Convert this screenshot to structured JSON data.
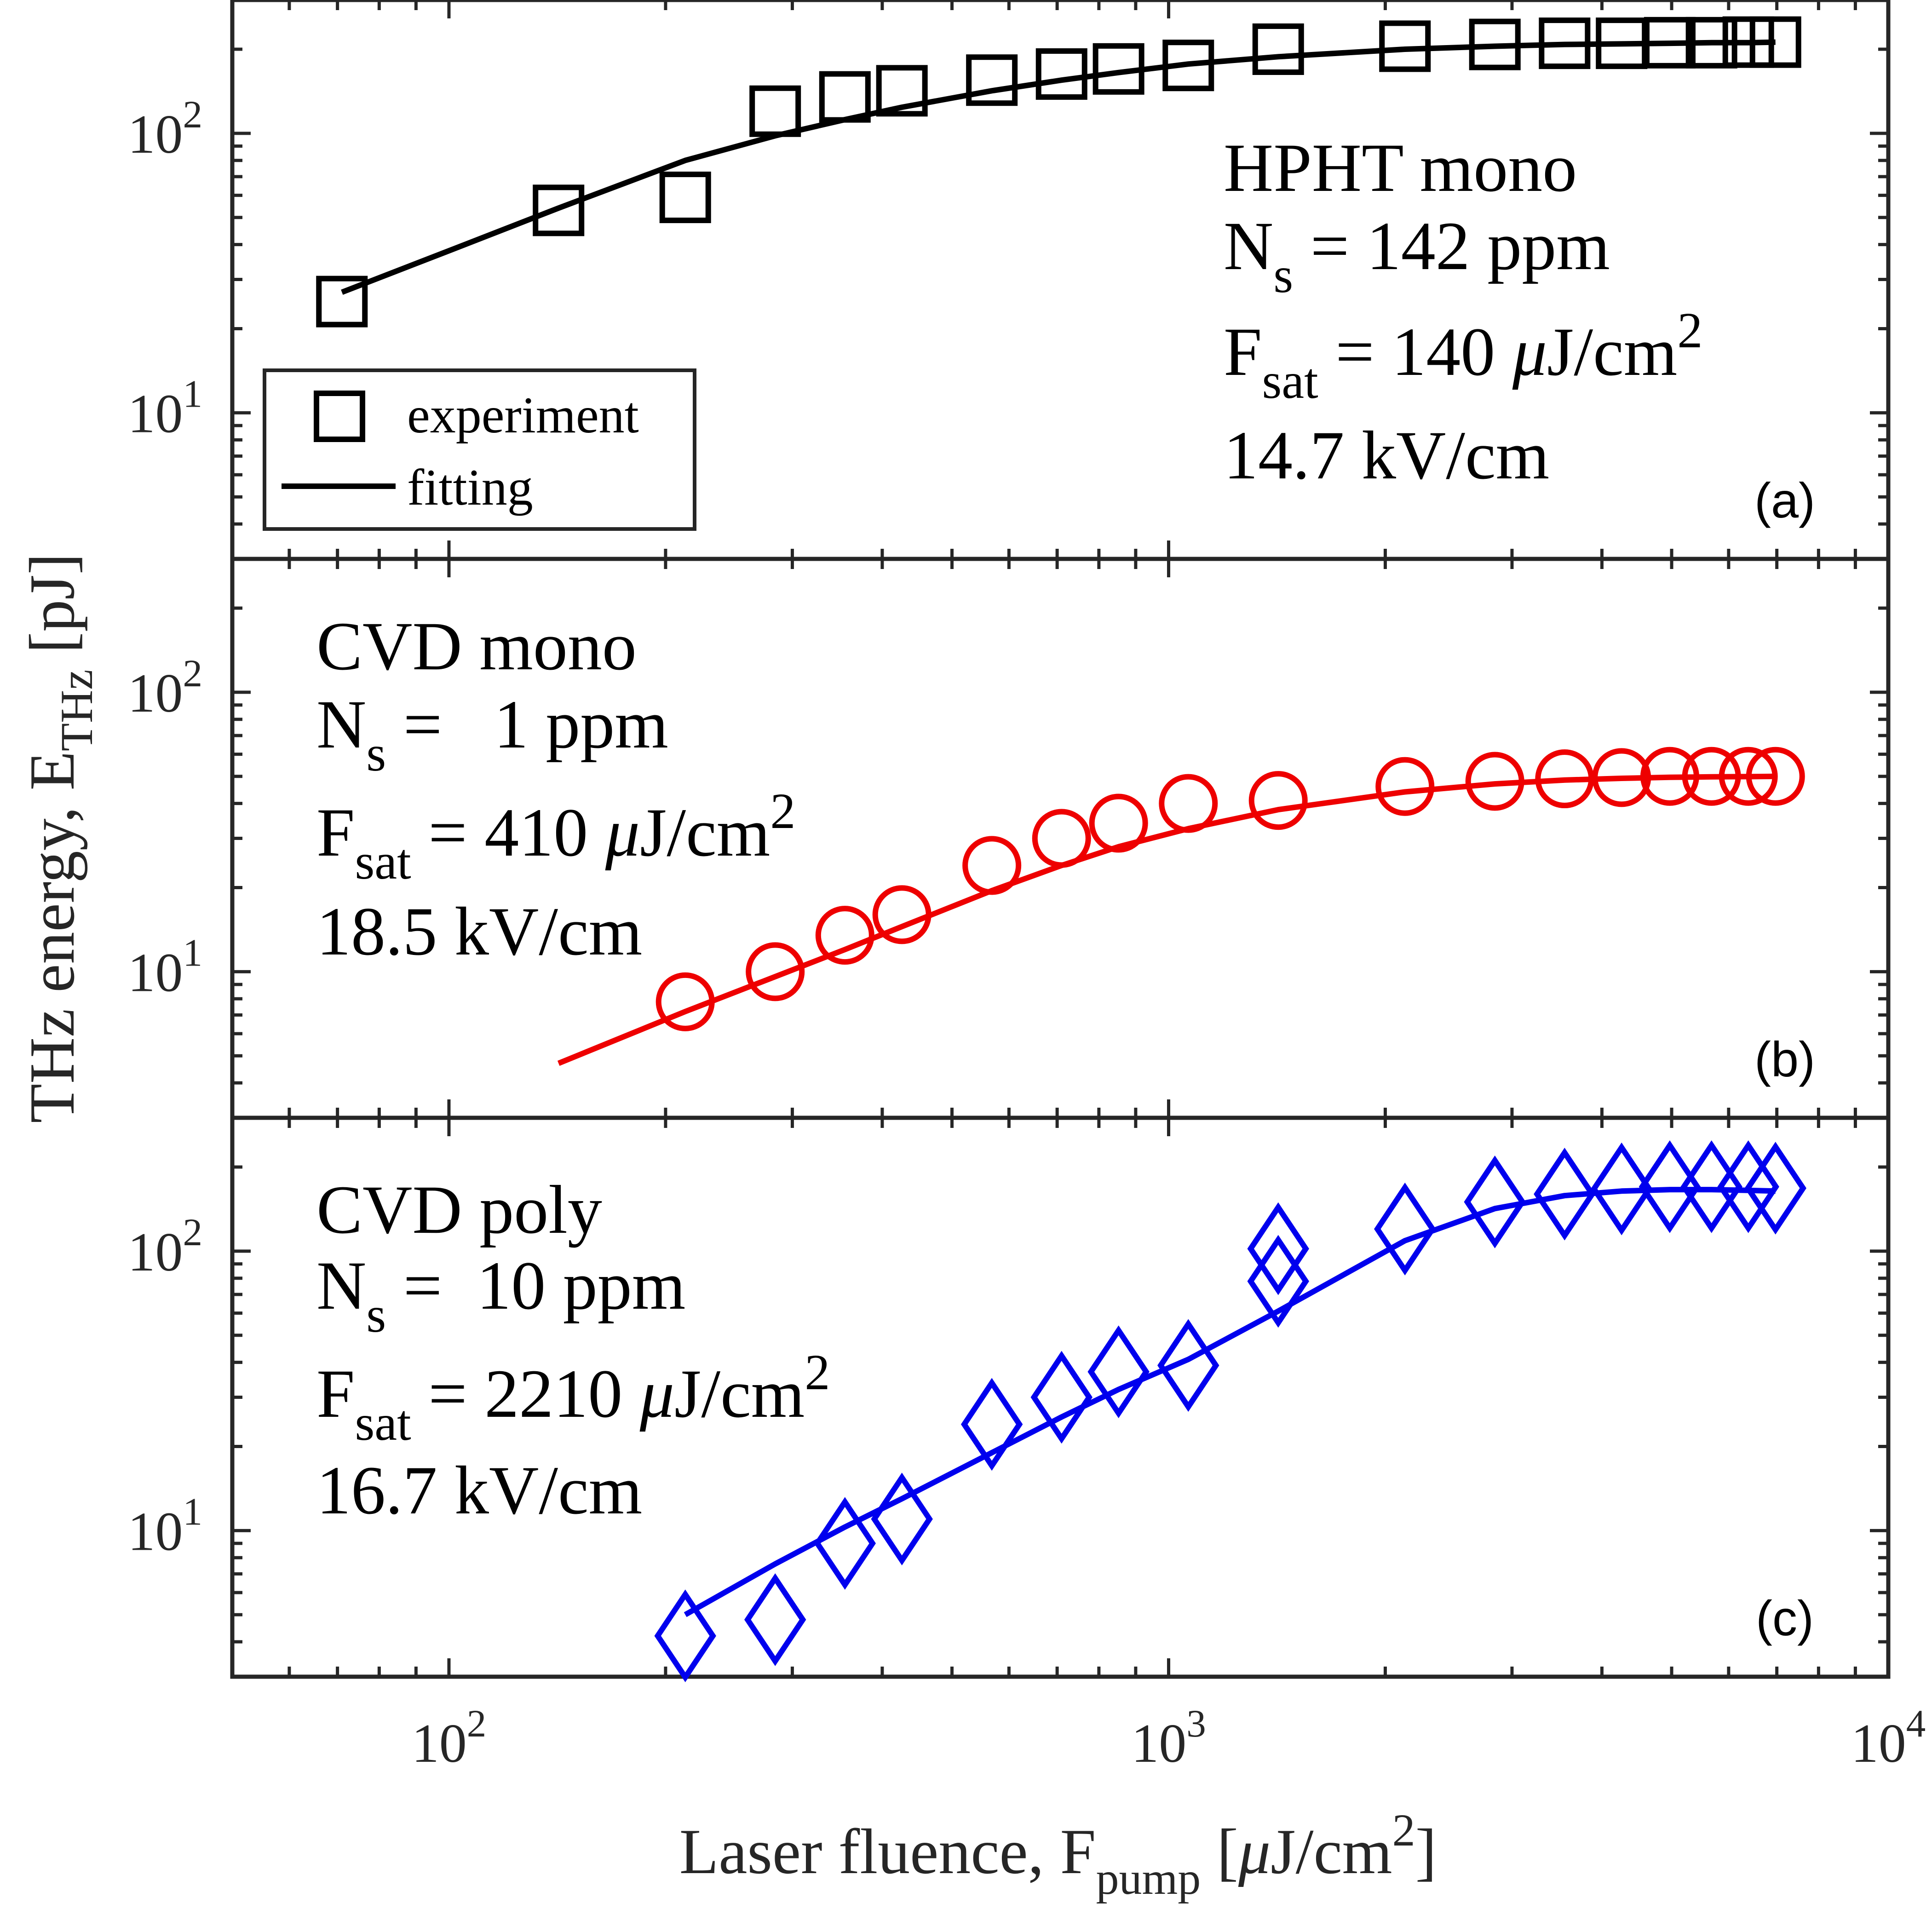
{
  "figure": {
    "ylabel": {
      "main": "THz energy, E",
      "sub": "THz",
      "unit": " [pJ]"
    },
    "xlabel": {
      "main": "Laser fluence, F",
      "sub": "pump",
      "unit_pre": " [",
      "mu": "μ",
      "unit_mid": "J/cm",
      "sup": "2",
      "unit_post": "]"
    }
  },
  "chart_data": [
    {
      "type": "scatter",
      "panel": "(a)",
      "color": "#000000",
      "marker": "square",
      "xscale": "log",
      "yscale": "log",
      "xlim": [
        50,
        10000
      ],
      "ylim": [
        3,
        300
      ],
      "xticks": [
        100,
        1000,
        10000
      ],
      "xtick_labels": [
        {
          "base": "10",
          "exp": "2"
        },
        {
          "base": "10",
          "exp": "3"
        },
        {
          "base": "10",
          "exp": "4"
        }
      ],
      "yticks": [
        10,
        100
      ],
      "ytick_labels": [
        {
          "base": "10",
          "exp": "1"
        },
        {
          "base": "10",
          "exp": "2"
        }
      ],
      "annotation": {
        "title": "HPHT mono",
        "ns_main": "N",
        "ns_sub": "s",
        "ns_value": " = 142 ppm",
        "fsat_main": "F",
        "fsat_sub": "sat",
        "fsat_value": " = 140 ",
        "fsat_mu": "μ",
        "fsat_unit": "J/cm",
        "fsat_sup": "2",
        "field": "14.7 kV/cm"
      },
      "legend": {
        "experiment": "experiment",
        "fitting": "fitting",
        "placement": "bottom-left"
      },
      "series": [
        {
          "name": "experiment",
          "x": [
            71,
            142,
            213,
            284,
            355,
            426,
            568,
            710,
            852,
            1065,
            1420,
            2130,
            2840,
            3550,
            4260,
            4970,
            5680,
            6390,
            6970
          ],
          "y": [
            25,
            53,
            59,
            120,
            135,
            142,
            155,
            163,
            170,
            175,
            200,
            205,
            208,
            210,
            210,
            211,
            211,
            212,
            212
          ]
        },
        {
          "name": "fitting",
          "x": [
            71,
            100,
            142,
            213,
            284,
            355,
            426,
            568,
            710,
            852,
            1065,
            1420,
            2130,
            2840,
            3550,
            4260,
            4970,
            5680,
            6390,
            6970
          ],
          "y": [
            27,
            38,
            54,
            80,
            98,
            112,
            124,
            142,
            155,
            165,
            177,
            188,
            200,
            205,
            208,
            209,
            210,
            211,
            211,
            212
          ]
        }
      ]
    },
    {
      "type": "scatter",
      "panel": "(b)",
      "color": "#ee0000",
      "marker": "circle",
      "xscale": "log",
      "yscale": "log",
      "xlim": [
        50,
        10000
      ],
      "ylim": [
        3,
        300
      ],
      "xticks": [
        100,
        1000,
        10000
      ],
      "yticks": [
        10,
        100
      ],
      "ytick_labels": [
        {
          "base": "10",
          "exp": "1"
        },
        {
          "base": "10",
          "exp": "2"
        }
      ],
      "annotation": {
        "title": "CVD mono",
        "ns_main": "N",
        "ns_sub": "s",
        "ns_value": " =   1 ppm",
        "fsat_main": "F",
        "fsat_sub": "sat",
        "fsat_value": " = 410 ",
        "fsat_mu": "μ",
        "fsat_unit": "J/cm",
        "fsat_sup": "2",
        "field": "18.5 kV/cm"
      },
      "series": [
        {
          "name": "experiment",
          "x": [
            213,
            284,
            355,
            426,
            568,
            710,
            852,
            1065,
            1420,
            2130,
            2840,
            3550,
            4260,
            4970,
            5680,
            6390,
            6970
          ],
          "y": [
            7.8,
            10,
            13.5,
            16,
            24,
            30,
            34,
            40,
            41,
            46,
            48,
            49,
            49.5,
            50,
            50,
            50,
            50
          ]
        },
        {
          "name": "fitting",
          "x": [
            142,
            213,
            284,
            355,
            426,
            568,
            710,
            852,
            1065,
            1420,
            2130,
            2840,
            3550,
            4260,
            4970,
            5680,
            6390,
            6970
          ],
          "y": [
            4.7,
            7.2,
            9.6,
            12,
            14.5,
            19.5,
            24,
            28,
            32.5,
            38,
            44,
            47,
            48.5,
            49.2,
            49.6,
            49.8,
            49.9,
            50
          ]
        }
      ]
    },
    {
      "type": "scatter",
      "panel": "(c)",
      "color": "#0000ee",
      "marker": "diamond",
      "xscale": "log",
      "yscale": "log",
      "xlim": [
        50,
        10000
      ],
      "ylim": [
        3,
        300
      ],
      "xticks": [
        100,
        1000,
        10000
      ],
      "yticks": [
        10,
        100
      ],
      "ytick_labels": [
        {
          "base": "10",
          "exp": "1"
        },
        {
          "base": "10",
          "exp": "2"
        }
      ],
      "annotation": {
        "title": "CVD poly",
        "ns_main": "N",
        "ns_sub": "s",
        "ns_value": " =  10 ppm",
        "fsat_main": "F",
        "fsat_sub": "sat",
        "fsat_value": " = 2210 ",
        "fsat_mu": "μ",
        "fsat_unit": "J/cm",
        "fsat_sup": "2",
        "field": "16.7 kV/cm"
      },
      "series": [
        {
          "name": "experiment",
          "x": [
            213,
            284,
            355,
            426,
            568,
            710,
            852,
            1065,
            1420,
            1420,
            2130,
            2840,
            3550,
            4260,
            4970,
            5680,
            6390,
            6970
          ],
          "y": [
            4.2,
            4.8,
            9,
            11,
            24,
            30,
            37,
            39,
            78,
            102,
            120,
            150,
            160,
            167,
            170,
            170,
            170,
            168
          ]
        },
        {
          "name": "fitting",
          "x": [
            213,
            284,
            355,
            426,
            568,
            710,
            852,
            1065,
            1420,
            2130,
            2840,
            3550,
            4260,
            4970,
            5680,
            6390,
            6970
          ],
          "y": [
            5,
            7.6,
            10.3,
            13,
            19,
            25.5,
            32,
            41,
            61,
            109,
            142,
            158,
            164,
            166,
            166,
            165,
            164
          ]
        }
      ]
    }
  ]
}
